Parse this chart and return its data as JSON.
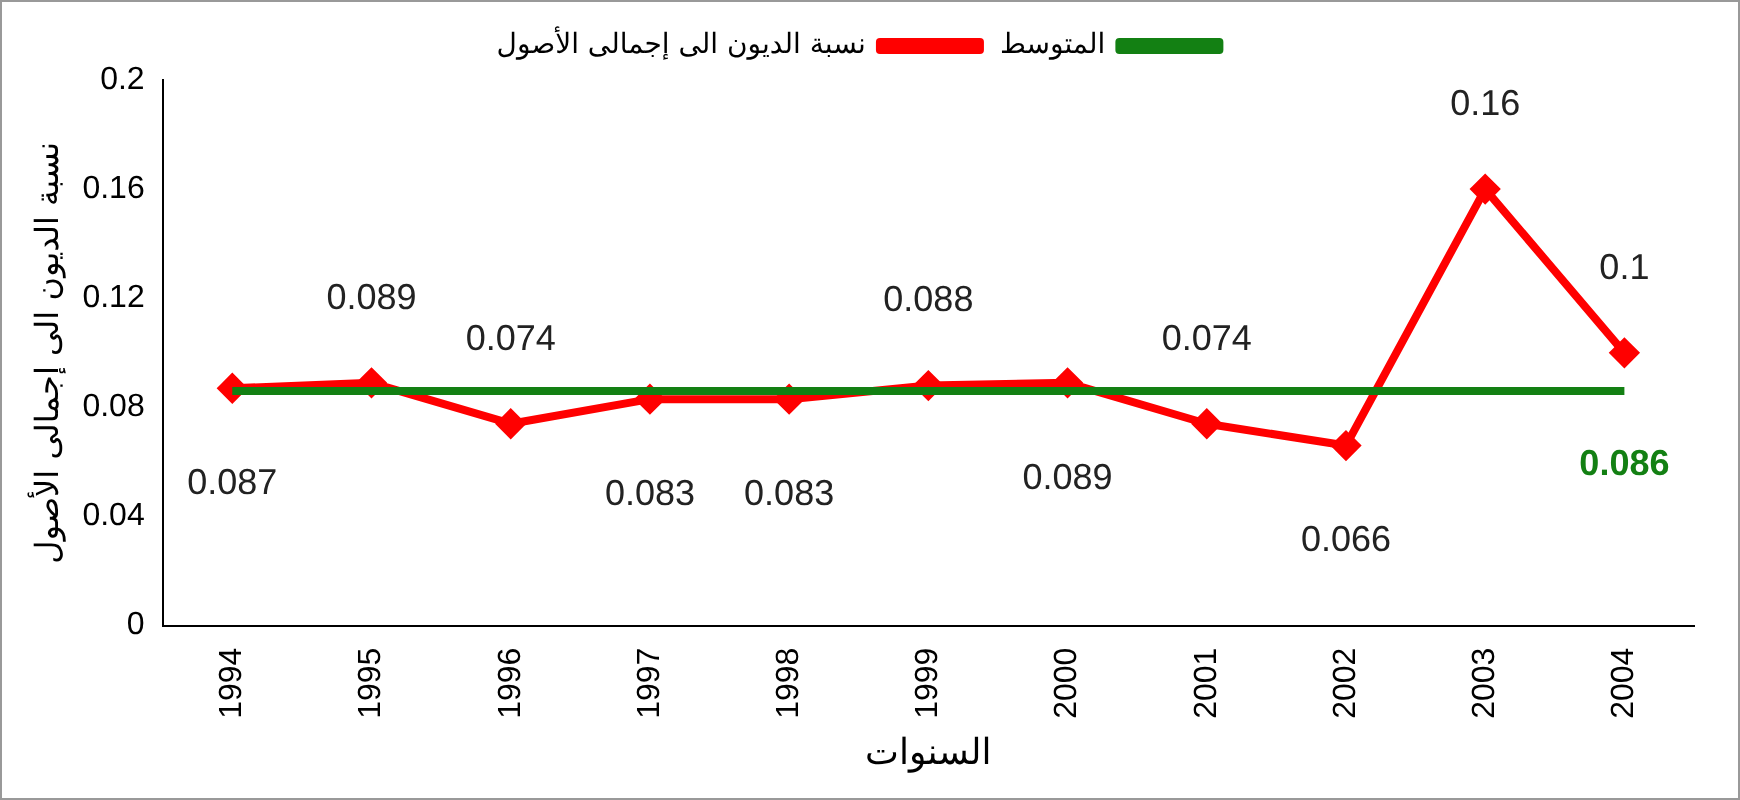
{
  "chart_data": {
    "type": "line",
    "xlabel": "السنوات",
    "ylabel": "نسبة الديون الى إجمالى الأصول",
    "categories": [
      "1994",
      "1995",
      "1996",
      "1997",
      "1998",
      "1999",
      "2000",
      "2001",
      "2002",
      "2003",
      "2004"
    ],
    "series": [
      {
        "name": "نسبة الديون الى إجمالى الأصول",
        "color": "#ff0000",
        "marker": "diamond",
        "values": [
          0.087,
          0.089,
          0.074,
          0.083,
          0.083,
          0.088,
          0.089,
          0.074,
          0.066,
          0.16,
          0.1
        ],
        "value_labels": [
          "0.087",
          "0.089",
          "0.074",
          "0.083",
          "0.083",
          "0.088",
          "0.089",
          "0.074",
          "0.066",
          "0.16",
          "0.1"
        ]
      },
      {
        "name": "المتوسط",
        "color": "#138013",
        "marker": "none",
        "values": [
          0.086,
          0.086,
          0.086,
          0.086,
          0.086,
          0.086,
          0.086,
          0.086,
          0.086,
          0.086,
          0.086
        ],
        "value_labels": [
          null,
          null,
          null,
          null,
          null,
          null,
          null,
          null,
          null,
          null,
          "0.086"
        ]
      }
    ],
    "ylim": [
      0,
      0.2
    ],
    "yticks": [
      0,
      0.04,
      0.08,
      0.12,
      0.16,
      0.2
    ],
    "grid": false,
    "legend": "top",
    "line_style": "solid"
  }
}
